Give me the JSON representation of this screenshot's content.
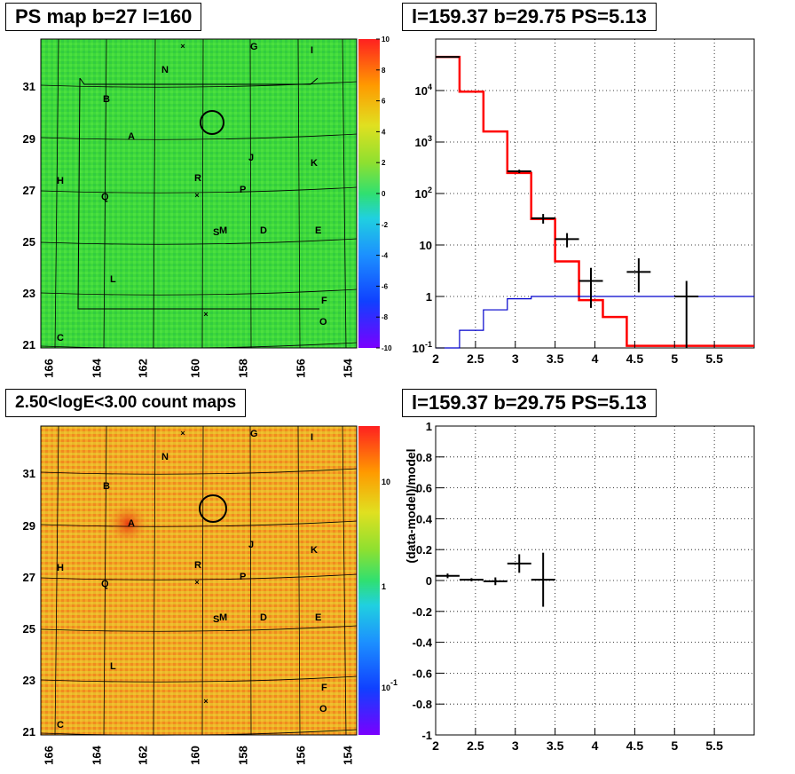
{
  "panels": {
    "tl_title": "PS map b=27 l=160",
    "tr_title": "l=159.37 b=29.75 PS=5.13",
    "bl_title": "2.50<logE<3.00 count maps",
    "br_title": "l=159.37 b=29.75 PS=5.13"
  },
  "maps": {
    "x_ticks": [
      "166",
      "164",
      "162",
      "160",
      "158",
      "156",
      "154"
    ],
    "y_ticks": [
      "31",
      "29",
      "27",
      "25",
      "23",
      "21"
    ],
    "labels": [
      "G",
      "I",
      "N",
      "B",
      "A",
      "J",
      "K",
      "H",
      "R",
      "P",
      "Q",
      "S",
      "M",
      "D",
      "E",
      "L",
      "F",
      "O",
      "C"
    ],
    "ps_colorbar_ticks": [
      "10",
      "8",
      "6",
      "4",
      "2",
      "0",
      "-2",
      "-4",
      "-6",
      "-8",
      "-10"
    ],
    "count_colorbar_ticks": [
      "10",
      "1",
      "10^-1"
    ],
    "colors": {
      "green_bg": "#3ed83a",
      "count_bg": "#f5a623",
      "circle": "#000000"
    }
  },
  "chart_data": [
    {
      "type": "step",
      "panel": "top-right",
      "title": "l=159.37 b=29.75 PS=5.13",
      "xlabel": "",
      "ylabel": "",
      "xlim": [
        2,
        6
      ],
      "ylim": [
        0.1,
        100000
      ],
      "yscale": "log",
      "grid": true,
      "x_ticks": [
        "2",
        "2.5",
        "3",
        "3.5",
        "4",
        "4.5",
        "5",
        "5.5"
      ],
      "y_ticks": [
        "10^-1",
        "1",
        "10",
        "10^2",
        "10^3",
        "10^4"
      ],
      "series": [
        {
          "color": "#ff0000",
          "bins": [
            2.0,
            2.3,
            2.6,
            2.9,
            3.2,
            3.5,
            3.8,
            4.1,
            4.4,
            6.0
          ],
          "values": [
            45000,
            9500,
            1600,
            250,
            32,
            4.8,
            0.85,
            0.4,
            0.11
          ]
        },
        {
          "color": "#0000cc",
          "bins": [
            2.0,
            2.3,
            2.6,
            2.9,
            3.2,
            3.5,
            3.8,
            4.1,
            4.4,
            6.0
          ],
          "values": [
            0.08,
            0.22,
            0.55,
            0.9,
            1.0,
            1.0,
            1.0,
            1.0,
            1.0
          ]
        }
      ],
      "points": [
        {
          "x": 2.15,
          "y": 45000,
          "xerr": 0.15,
          "ylo": 45000,
          "yhi": 45000
        },
        {
          "x": 3.05,
          "y": 270,
          "xerr": 0.15,
          "ylo": 250,
          "yhi": 290
        },
        {
          "x": 3.35,
          "y": 33,
          "xerr": 0.15,
          "ylo": 26,
          "yhi": 40
        },
        {
          "x": 3.65,
          "y": 13,
          "xerr": 0.15,
          "ylo": 9,
          "yhi": 17
        },
        {
          "x": 3.95,
          "y": 2,
          "xerr": 0.15,
          "ylo": 0.6,
          "yhi": 3.6
        },
        {
          "x": 4.55,
          "y": 3,
          "xerr": 0.15,
          "ylo": 1.2,
          "yhi": 5.5
        },
        {
          "x": 5.15,
          "y": 1,
          "xerr": 0.15,
          "ylo": 0.1,
          "yhi": 2
        }
      ]
    },
    {
      "type": "scatter",
      "panel": "bottom-right",
      "title": "l=159.37 b=29.75 PS=5.13",
      "xlabel": "",
      "ylabel": "(data-model)/model",
      "xlim": [
        2,
        6
      ],
      "ylim": [
        -1,
        1
      ],
      "grid": true,
      "x_ticks": [
        "2",
        "2.5",
        "3",
        "3.5",
        "4",
        "4.5",
        "5",
        "5.5"
      ],
      "y_ticks": [
        "-1",
        "-0.8",
        "-0.6",
        "-0.4",
        "-0.2",
        "0",
        "0.2",
        "0.4",
        "0.6",
        "0.8",
        "1"
      ],
      "points": [
        {
          "x": 2.15,
          "y": 0.03,
          "xerr": 0.15,
          "ylo": 0.015,
          "yhi": 0.045
        },
        {
          "x": 2.45,
          "y": 0.005,
          "xerr": 0.15,
          "ylo": -0.005,
          "yhi": 0.015
        },
        {
          "x": 2.75,
          "y": -0.005,
          "xerr": 0.15,
          "ylo": -0.03,
          "yhi": 0.02
        },
        {
          "x": 3.05,
          "y": 0.11,
          "xerr": 0.15,
          "ylo": 0.05,
          "yhi": 0.17
        },
        {
          "x": 3.35,
          "y": 0.005,
          "xerr": 0.15,
          "ylo": -0.17,
          "yhi": 0.18
        }
      ]
    }
  ]
}
